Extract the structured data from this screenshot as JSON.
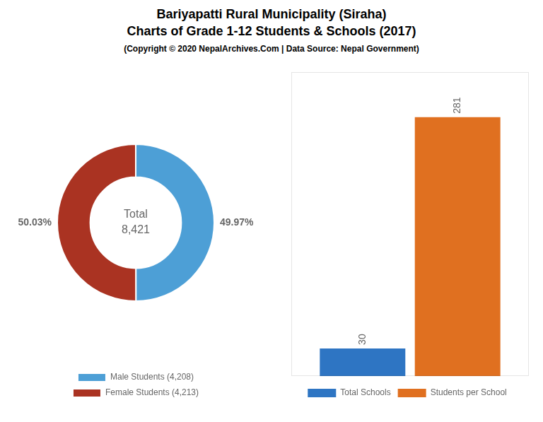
{
  "chart_data": [
    {
      "type": "doughnut",
      "title": [
        "Bariyapatti Rural Municipality (Siraha)",
        "Charts of Grade 1-12 Students & Schools (2017)"
      ],
      "subtitle": "(Copyright © 2020 NepalArchives.Com | Data Source: Nepal Government)",
      "categories": [
        "Male Students (4,208)",
        "Female Students (4,213)"
      ],
      "values": [
        49.97,
        50.03
      ],
      "value_labels": [
        "49.97%",
        "50.03%"
      ],
      "colors": [
        "#4d9fd6",
        "#aa3322"
      ],
      "data_labels": true,
      "legend": "bottom",
      "annotations": [
        "Total",
        "8,421"
      ]
    },
    {
      "type": "bar",
      "categories": [
        null
      ],
      "series": [
        {
          "name": "Total Schools",
          "color": "#2e75c3",
          "values": [
            30
          ]
        },
        {
          "name": "Students per School",
          "color": "#e07020",
          "values": [
            281
          ]
        }
      ],
      "ylim": [
        0,
        330
      ],
      "yticks": [],
      "tick_labels": false,
      "grid": false,
      "data_labels": true,
      "legend": "bottom"
    }
  ]
}
